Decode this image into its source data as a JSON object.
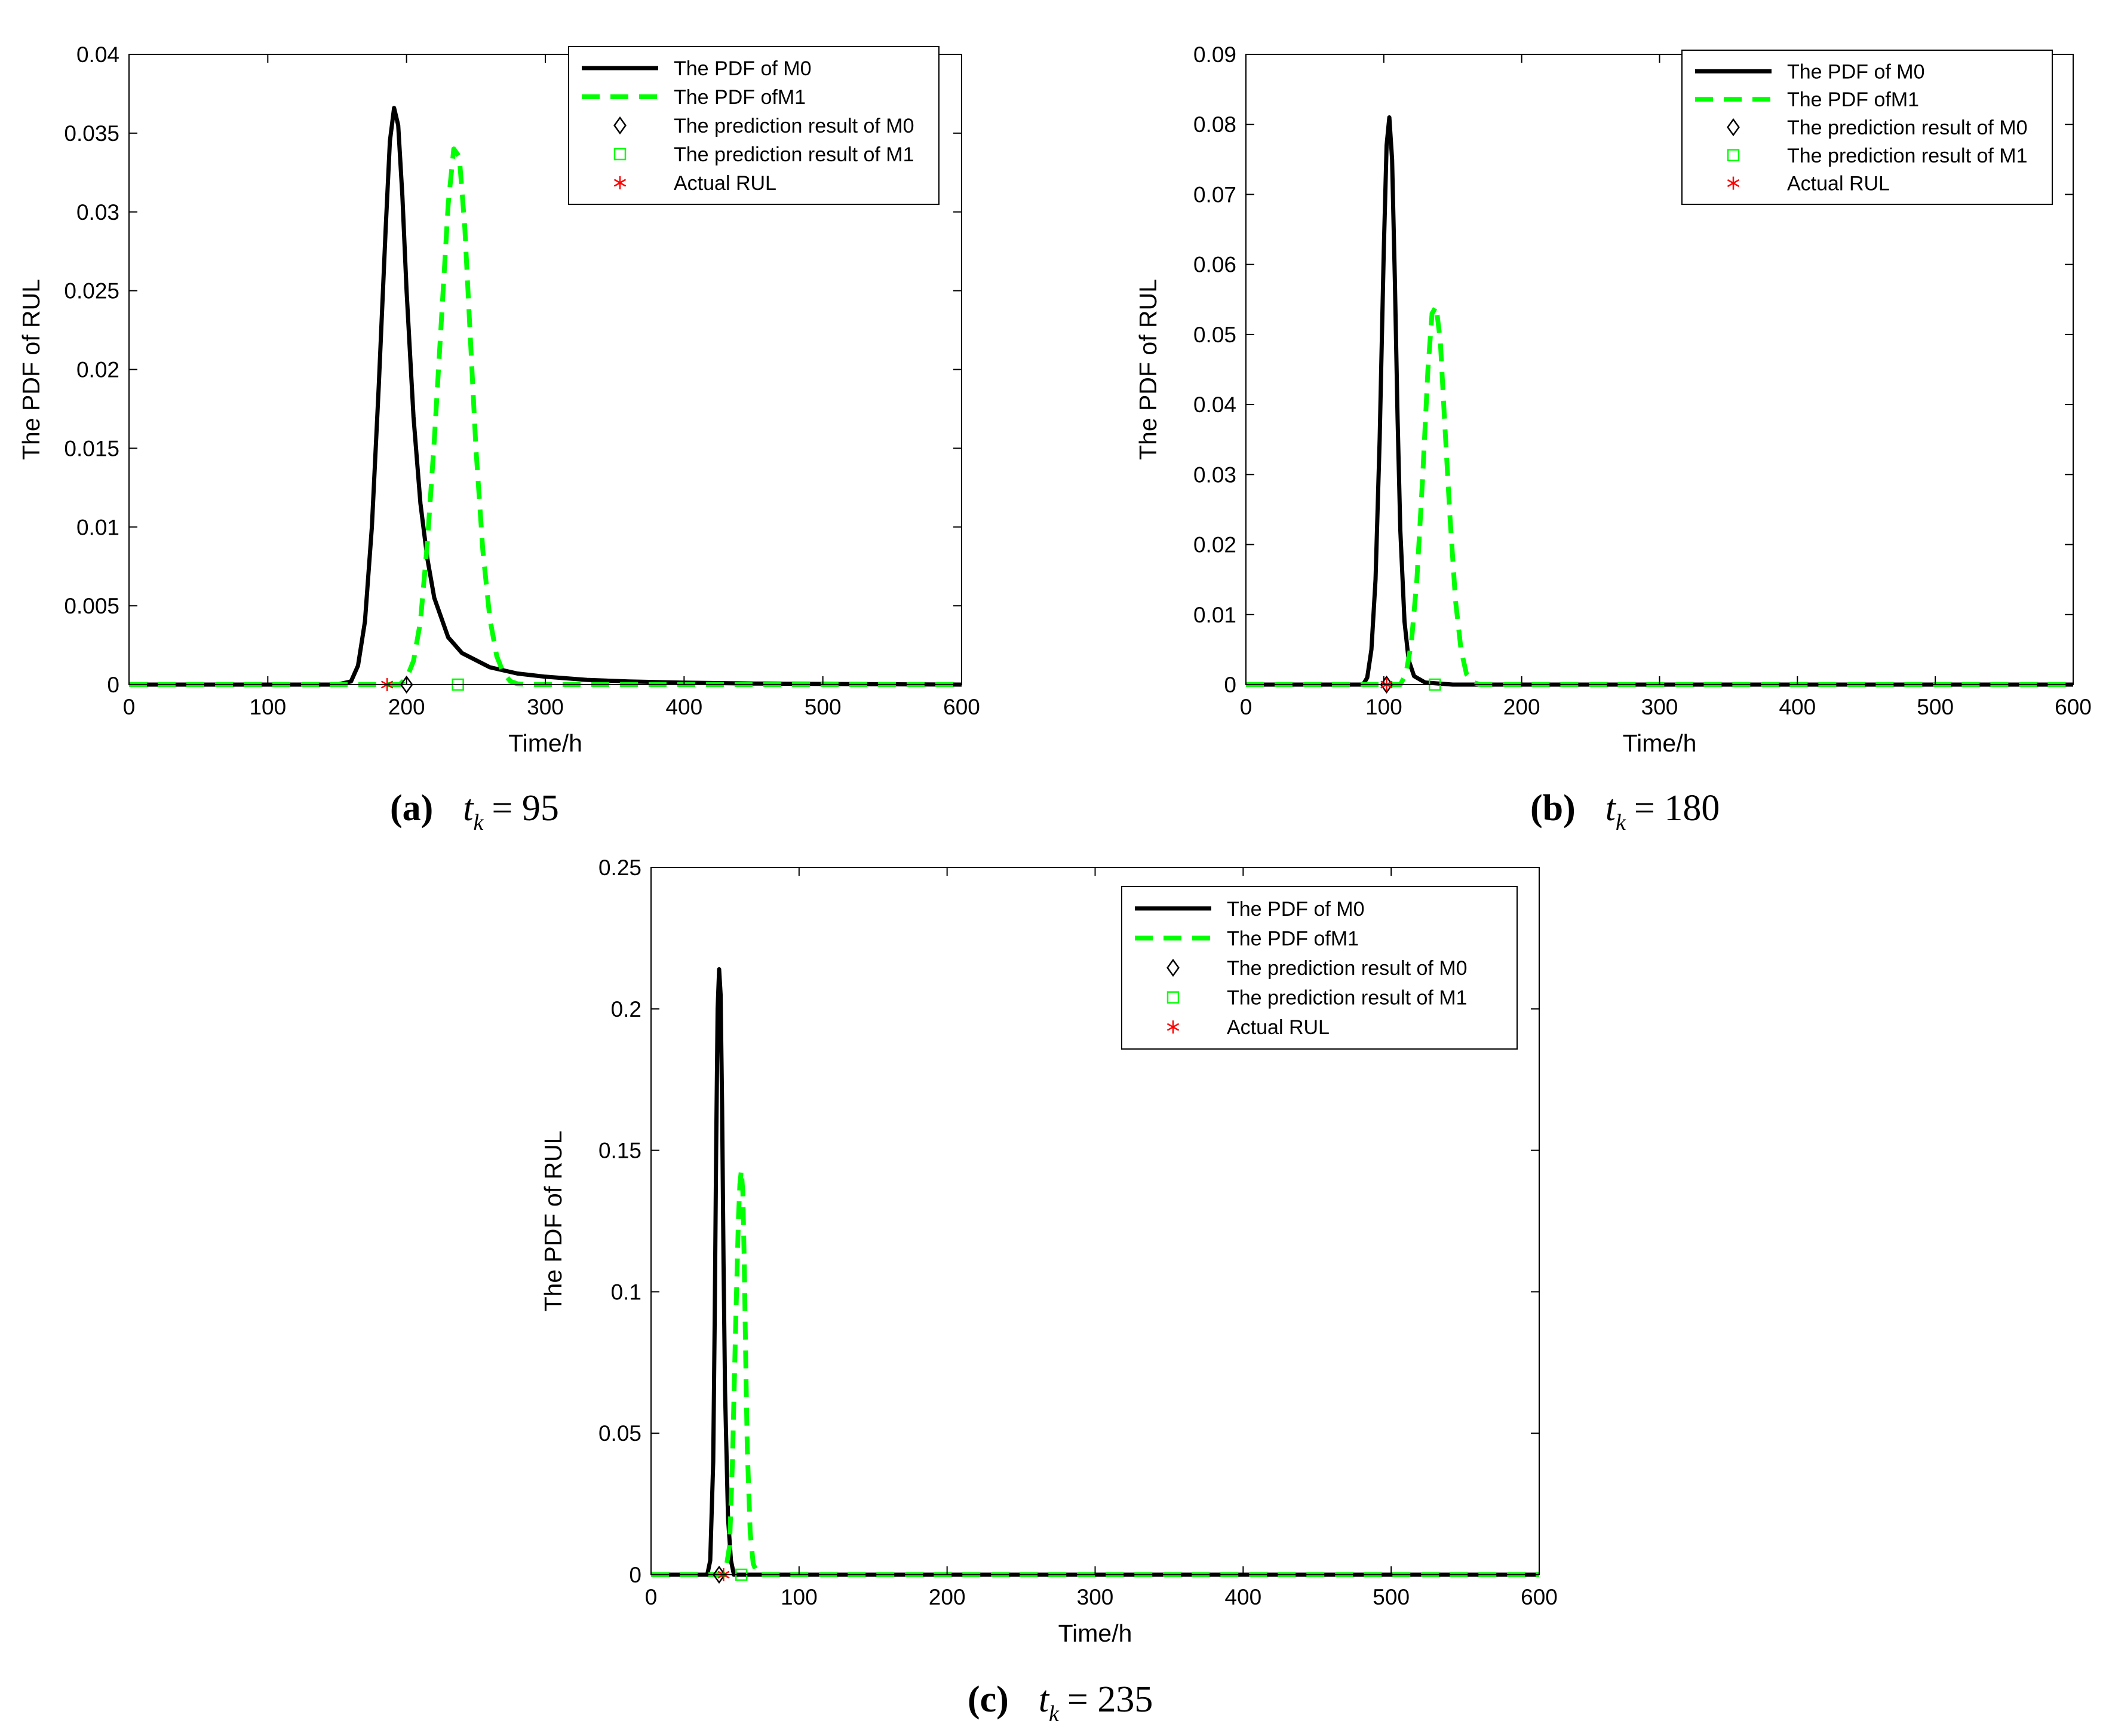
{
  "figure": {
    "legend_labels": [
      "The PDF of M0",
      "The PDF ofM1",
      "The prediction result of M0",
      "The prediction result of M1",
      "Actual RUL"
    ],
    "colors": {
      "m0": "#000000",
      "m1": "#00ff00",
      "actual": "#ff0000",
      "axis": "#000000",
      "background": "#ffffff"
    }
  },
  "chart_data": [
    {
      "id": "a",
      "type": "line",
      "caption": {
        "letter": "(a)",
        "t": "t",
        "sub": "k",
        "eq": "= 95"
      },
      "xlabel": "Time/h",
      "ylabel": "The PDF of RUL",
      "xlim": [
        0,
        600
      ],
      "ylim": [
        0,
        0.04
      ],
      "xticks": [
        0,
        100,
        200,
        300,
        400,
        500,
        600
      ],
      "xtick_labels": [
        "0",
        "100",
        "200",
        "300",
        "400",
        "500",
        "600"
      ],
      "yticks": [
        0,
        0.005,
        0.01,
        0.015,
        0.02,
        0.025,
        0.03,
        0.035,
        0.04
      ],
      "ytick_labels": [
        "0",
        "0.005",
        "0.01",
        "0.015",
        "0.02",
        "0.025",
        "0.03",
        "0.035",
        "0.04"
      ],
      "legend_position": "top-right",
      "series": [
        {
          "name": "The PDF of M0",
          "style": "solid",
          "x": [
            0,
            150,
            160,
            165,
            170,
            175,
            180,
            185,
            188,
            191,
            194,
            197,
            200,
            205,
            210,
            215,
            220,
            230,
            240,
            260,
            280,
            300,
            330,
            360,
            400,
            450,
            500,
            600
          ],
          "y": [
            0,
            0,
            0.0002,
            0.0012,
            0.004,
            0.01,
            0.019,
            0.029,
            0.0345,
            0.0366,
            0.0355,
            0.031,
            0.025,
            0.017,
            0.0115,
            0.008,
            0.0055,
            0.003,
            0.002,
            0.0011,
            0.0007,
            0.0005,
            0.0003,
            0.0002,
            0.00012,
            7e-05,
            4e-05,
            0
          ]
        },
        {
          "name": "The PDF ofM1",
          "style": "dashed",
          "x": [
            0,
            195,
            200,
            205,
            210,
            215,
            220,
            225,
            230,
            234,
            238,
            242,
            246,
            250,
            255,
            260,
            265,
            270,
            275,
            280,
            290,
            600
          ],
          "y": [
            0,
            0,
            0.0004,
            0.0015,
            0.004,
            0.009,
            0.0155,
            0.023,
            0.0305,
            0.034,
            0.0335,
            0.029,
            0.022,
            0.015,
            0.0085,
            0.0042,
            0.0018,
            0.0007,
            0.0002,
            5e-05,
            0,
            0
          ]
        }
      ],
      "markers": [
        {
          "name": "The prediction result of M0",
          "symbol": "diamond",
          "x": 200,
          "y": 0
        },
        {
          "name": "The prediction result of M1",
          "symbol": "square",
          "x": 237,
          "y": 0
        },
        {
          "name": "Actual RUL",
          "symbol": "asterisk",
          "x": 186,
          "y": 0
        }
      ]
    },
    {
      "id": "b",
      "type": "line",
      "caption": {
        "letter": "(b)",
        "t": "t",
        "sub": "k",
        "eq": "= 180"
      },
      "xlabel": "Time/h",
      "ylabel": "The PDF of RUL",
      "xlim": [
        0,
        600
      ],
      "ylim": [
        0,
        0.09
      ],
      "xticks": [
        0,
        100,
        200,
        300,
        400,
        500,
        600
      ],
      "xtick_labels": [
        "0",
        "100",
        "200",
        "300",
        "400",
        "500",
        "600"
      ],
      "yticks": [
        0,
        0.01,
        0.02,
        0.03,
        0.04,
        0.05,
        0.06,
        0.07,
        0.08,
        0.09
      ],
      "ytick_labels": [
        "0",
        "0.01",
        "0.02",
        "0.03",
        "0.04",
        "0.05",
        "0.06",
        "0.07",
        "0.08",
        "0.09"
      ],
      "legend_position": "top-right",
      "series": [
        {
          "name": "The PDF of M0",
          "style": "solid",
          "x": [
            0,
            85,
            88,
            91,
            94,
            97,
            100,
            102,
            104,
            106,
            108,
            110,
            112,
            115,
            118,
            122,
            130,
            150,
            600
          ],
          "y": [
            0,
            0,
            0.001,
            0.005,
            0.015,
            0.035,
            0.062,
            0.077,
            0.081,
            0.075,
            0.058,
            0.038,
            0.022,
            0.009,
            0.0035,
            0.0012,
            0.0003,
            0,
            0
          ]
        },
        {
          "name": "The PDF ofM1",
          "style": "dashed",
          "x": [
            0,
            112,
            116,
            120,
            124,
            128,
            132,
            135,
            138,
            141,
            144,
            148,
            152,
            156,
            160,
            165,
            170,
            600
          ],
          "y": [
            0,
            0,
            0.0015,
            0.006,
            0.015,
            0.029,
            0.045,
            0.053,
            0.054,
            0.049,
            0.038,
            0.024,
            0.012,
            0.005,
            0.0015,
            0.0003,
            0,
            0
          ]
        }
      ],
      "markers": [
        {
          "name": "The prediction result of M0",
          "symbol": "diamond",
          "x": 102,
          "y": 0
        },
        {
          "name": "The prediction result of M1",
          "symbol": "square",
          "x": 137,
          "y": 0
        },
        {
          "name": "Actual RUL",
          "symbol": "asterisk",
          "x": 102,
          "y": 0
        }
      ]
    },
    {
      "id": "c",
      "type": "line",
      "caption": {
        "letter": "(c)",
        "t": "t",
        "sub": "k",
        "eq": "= 235"
      },
      "xlabel": "Time/h",
      "ylabel": "The PDF of RUL",
      "xlim": [
        0,
        600
      ],
      "ylim": [
        0,
        0.25
      ],
      "xticks": [
        0,
        100,
        200,
        300,
        400,
        500,
        600
      ],
      "xtick_labels": [
        "0",
        "100",
        "200",
        "300",
        "400",
        "500",
        "600"
      ],
      "yticks": [
        0,
        0.05,
        0.1,
        0.15,
        0.2,
        0.25
      ],
      "ytick_labels": [
        "0",
        "0.05",
        "0.1",
        "0.15",
        "0.2",
        "0.25"
      ],
      "legend_position": "top-right",
      "series": [
        {
          "name": "The PDF of M0",
          "style": "solid",
          "x": [
            0,
            38,
            40,
            42,
            43,
            44,
            45,
            46,
            47,
            48,
            49,
            50,
            52,
            54,
            56,
            600
          ],
          "y": [
            0,
            0,
            0.005,
            0.04,
            0.09,
            0.15,
            0.2,
            0.214,
            0.205,
            0.165,
            0.11,
            0.065,
            0.02,
            0.005,
            0,
            0
          ]
        },
        {
          "name": "The PDF ofM1",
          "style": "dashed",
          "x": [
            0,
            50,
            53,
            55,
            57,
            59,
            60,
            61,
            62,
            63,
            64,
            65,
            67,
            69,
            72,
            600
          ],
          "y": [
            0,
            0,
            0.01,
            0.04,
            0.085,
            0.125,
            0.138,
            0.143,
            0.135,
            0.11,
            0.075,
            0.045,
            0.015,
            0.004,
            0,
            0
          ]
        }
      ],
      "markers": [
        {
          "name": "The prediction result of M0",
          "symbol": "diamond",
          "x": 46,
          "y": 0
        },
        {
          "name": "The prediction result of M1",
          "symbol": "square",
          "x": 61,
          "y": 0
        },
        {
          "name": "Actual RUL",
          "symbol": "asterisk",
          "x": 49,
          "y": 0
        }
      ]
    }
  ]
}
